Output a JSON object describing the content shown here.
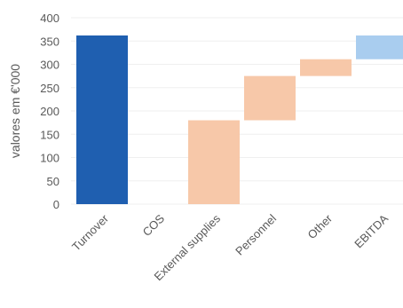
{
  "chart_data": {
    "type": "bar",
    "subtype": "waterfall",
    "categories": [
      "Turnover",
      "COS",
      "External supplies",
      "Personnel",
      "Other",
      "EBITDA"
    ],
    "series": [
      {
        "start": 0,
        "end": 362,
        "color": "#1f5fb0"
      },
      {
        "start": 0,
        "end": 0,
        "color": "#f7c8a9"
      },
      {
        "start": 0,
        "end": 180,
        "color": "#f7c8a9"
      },
      {
        "start": 180,
        "end": 275,
        "color": "#f7c8a9"
      },
      {
        "start": 275,
        "end": 311,
        "color": "#f7c8a9"
      },
      {
        "start": 311,
        "end": 362,
        "color": "#a9cdef"
      }
    ],
    "ylabel": "valores em €'000",
    "xlabel": "",
    "ylim": [
      0,
      400
    ],
    "yticks": [
      0,
      50,
      100,
      150,
      200,
      250,
      300,
      350,
      400
    ],
    "grid": true,
    "grid_color": "#efefef",
    "legend": "none"
  }
}
